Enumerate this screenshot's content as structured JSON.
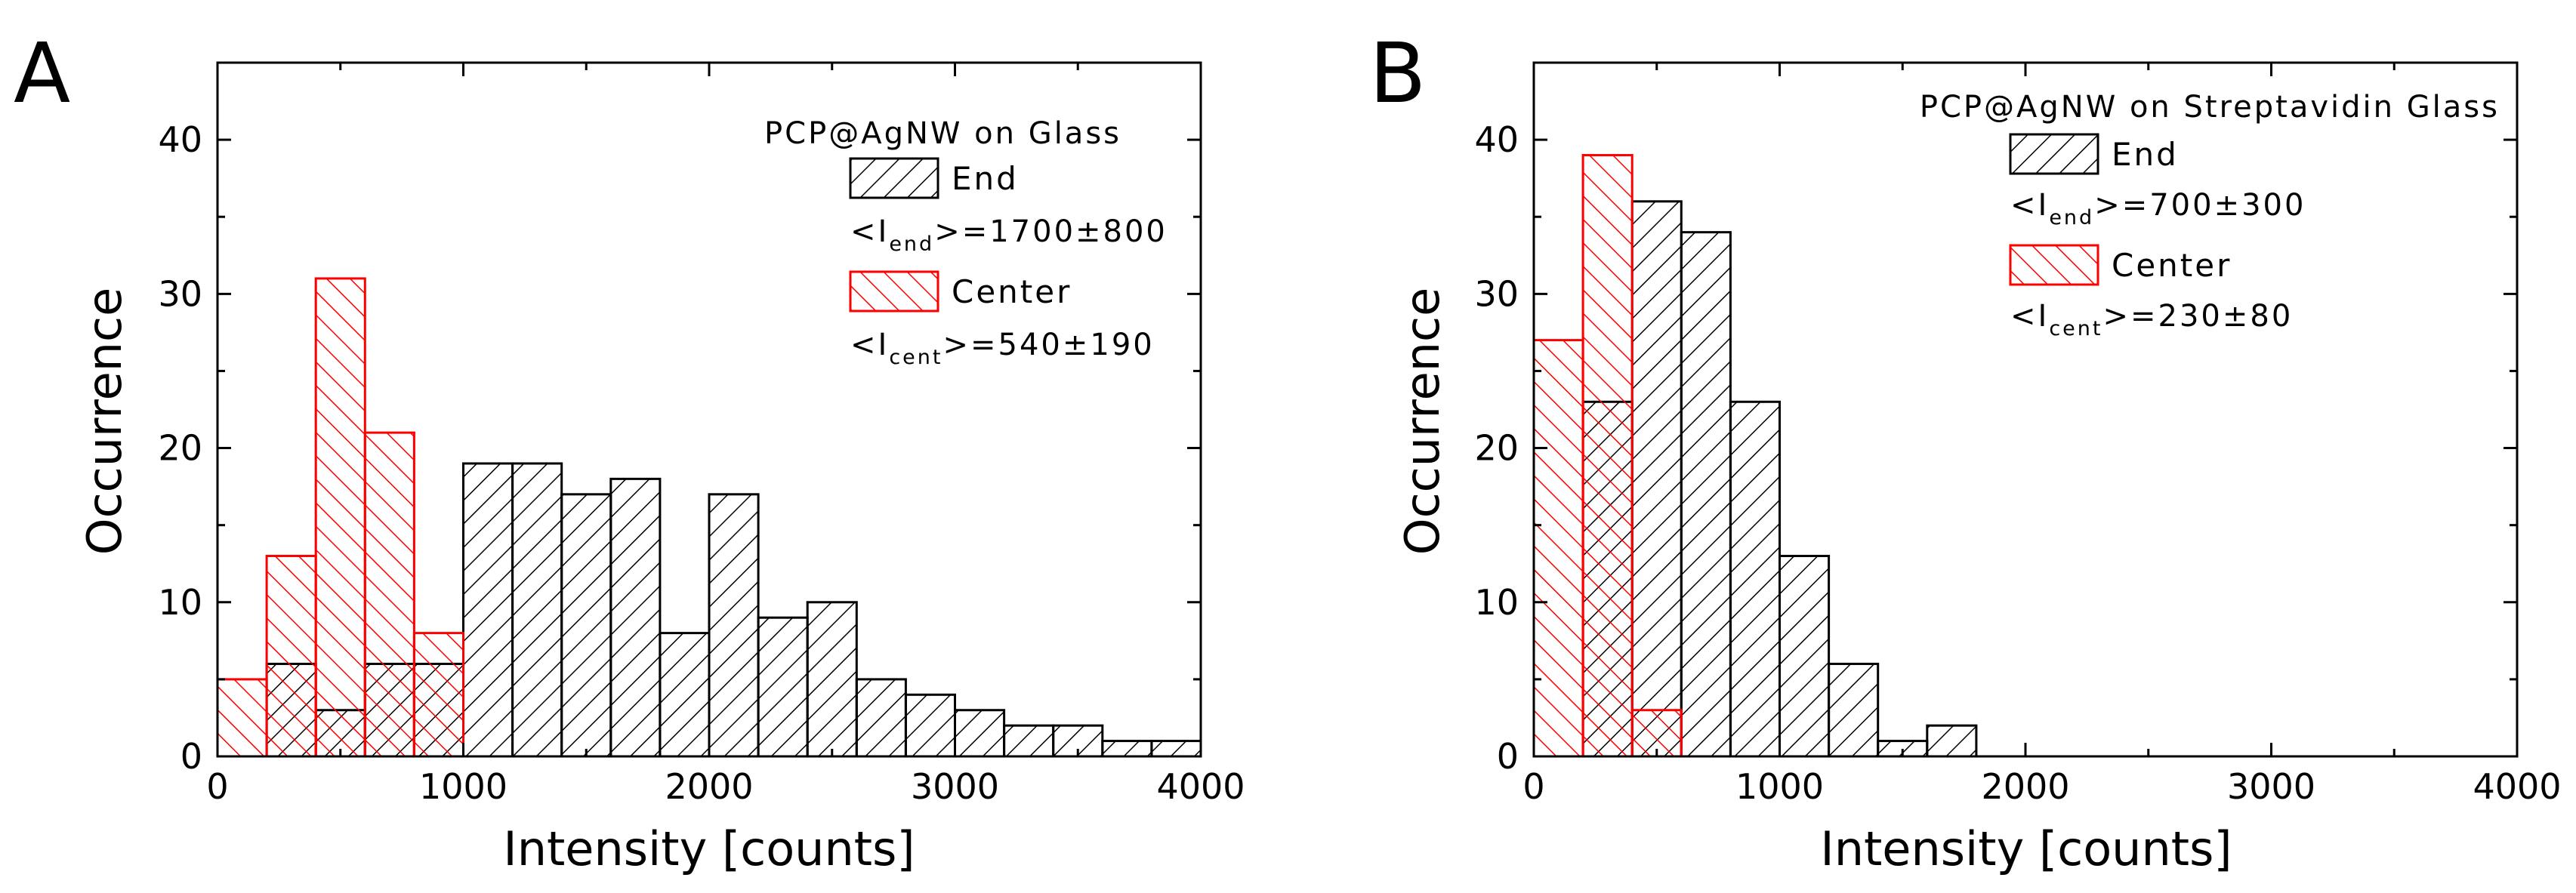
{
  "colors": {
    "end": "#000000",
    "center": "#ff0000"
  },
  "chart_data": [
    {
      "type": "bar",
      "panel": "A",
      "title": "PCP@AgNW on Glass",
      "xlabel": "Intensity [counts]",
      "ylabel": "Occurrence",
      "xlim": [
        0,
        4000
      ],
      "ylim": [
        0,
        45
      ],
      "xticks": [
        "0",
        "1000",
        "2000",
        "3000",
        "4000"
      ],
      "yticks": [
        "0",
        "10",
        "20",
        "30",
        "40"
      ],
      "bin_width": 200,
      "bin_starts": [
        0,
        200,
        400,
        600,
        800,
        1000,
        1200,
        1400,
        1600,
        1800,
        2000,
        2200,
        2400,
        2600,
        2800,
        3000,
        3200,
        3400,
        3600,
        3800
      ],
      "series": [
        {
          "name": "End",
          "stat_prefix": "<I",
          "stat_sub": "end",
          "stat_suffix": ">=1700±800",
          "values": [
            0,
            6,
            3,
            6,
            6,
            19,
            19,
            17,
            18,
            8,
            17,
            9,
            10,
            5,
            4,
            3,
            2,
            2,
            1,
            1
          ]
        },
        {
          "name": "Center",
          "stat_prefix": "<I",
          "stat_sub": "cent",
          "stat_suffix": ">=540±190",
          "values": [
            5,
            13,
            31,
            21,
            8,
            0,
            0,
            0,
            0,
            0,
            0,
            0,
            0,
            0,
            0,
            0,
            0,
            0,
            0,
            0
          ]
        }
      ]
    },
    {
      "type": "bar",
      "panel": "B",
      "title": "PCP@AgNW on Streptavidin Glass",
      "xlabel": "Intensity [counts]",
      "ylabel": "Occurrence",
      "xlim": [
        0,
        4000
      ],
      "ylim": [
        0,
        45
      ],
      "xticks": [
        "0",
        "1000",
        "2000",
        "3000",
        "4000"
      ],
      "yticks": [
        "0",
        "10",
        "20",
        "30",
        "40"
      ],
      "bin_width": 200,
      "bin_starts": [
        0,
        200,
        400,
        600,
        800,
        1000,
        1200,
        1400,
        1600,
        1800,
        2000,
        2200,
        2400,
        2600,
        2800,
        3000,
        3200,
        3400,
        3600,
        3800
      ],
      "series": [
        {
          "name": "End",
          "stat_prefix": "<I",
          "stat_sub": "end",
          "stat_suffix": ">=700±300",
          "values": [
            0,
            23,
            36,
            34,
            23,
            13,
            6,
            1,
            2,
            0,
            0,
            0,
            0,
            0,
            0,
            0,
            0,
            0,
            0,
            0
          ]
        },
        {
          "name": "Center",
          "stat_prefix": "<I",
          "stat_sub": "cent",
          "stat_suffix": ">=230±80",
          "values": [
            27,
            39,
            3,
            0,
            0,
            0,
            0,
            0,
            0,
            0,
            0,
            0,
            0,
            0,
            0,
            0,
            0,
            0,
            0,
            0
          ]
        }
      ]
    }
  ]
}
